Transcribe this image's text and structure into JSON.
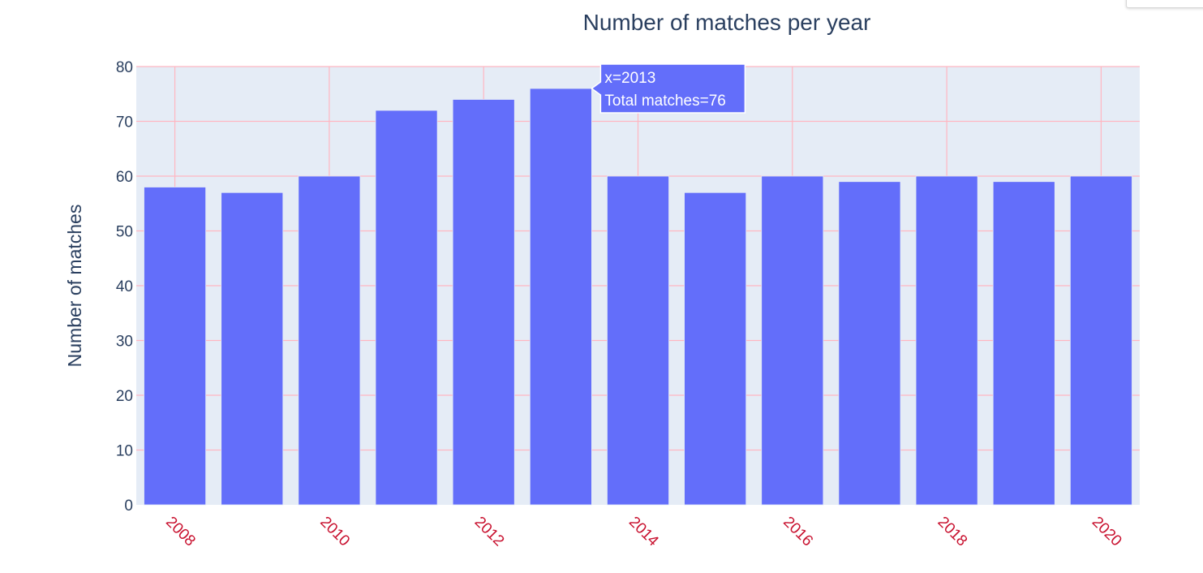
{
  "chart_data": {
    "type": "bar",
    "title": "Number of matches per year",
    "xlabel": "",
    "ylabel": "Number of matches",
    "categories": [
      2008,
      2009,
      2010,
      2011,
      2012,
      2013,
      2014,
      2015,
      2016,
      2017,
      2018,
      2019,
      2020
    ],
    "values": [
      58,
      57,
      60,
      72,
      74,
      76,
      60,
      57,
      60,
      59,
      60,
      59,
      60
    ],
    "x_ticks": [
      "2008",
      "2010",
      "2012",
      "2014",
      "2016",
      "2018",
      "2020"
    ],
    "y_ticks": [
      "0",
      "10",
      "20",
      "30",
      "40",
      "50",
      "60",
      "70",
      "80"
    ],
    "ylim": [
      0,
      80
    ],
    "grid": true,
    "colors": {
      "bar": "#636efa",
      "plot_bg": "#e5ecf6",
      "grid": "#ffb6c1",
      "x_tick_text": "#c8102e",
      "text": "#2a3f5f"
    },
    "tooltip": {
      "line1": "x=2013",
      "line2": "Total matches=76",
      "category": 2013
    }
  }
}
